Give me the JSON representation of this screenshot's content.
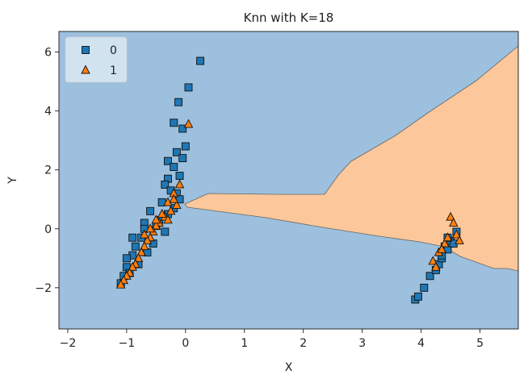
{
  "chart_data": {
    "type": "scatter",
    "title": "Knn with K=18",
    "xlabel": "X",
    "ylabel": "Y",
    "xlim": [
      -2.15,
      5.65
    ],
    "ylim": [
      -3.4,
      6.7
    ],
    "xticks": [
      -2,
      -1,
      0,
      1,
      2,
      3,
      4,
      5
    ],
    "yticks": [
      -2,
      0,
      2,
      4,
      6
    ],
    "grid": false,
    "legend_position": "top-left",
    "region_colors": {
      "class0": "#9cc0dd",
      "class1": "#fcc79a",
      "boundary": "#666666"
    },
    "series": [
      {
        "name": "0",
        "marker": "square",
        "color": "#1f77b4",
        "x": [
          0.25,
          0.05,
          -0.12,
          -0.2,
          -0.05,
          0.0,
          -0.15,
          -0.3,
          -0.2,
          -0.05,
          -0.1,
          -0.3,
          -0.35,
          -0.25,
          -0.15,
          -0.4,
          -0.1,
          -0.2,
          -0.3,
          -0.45,
          -0.5,
          -0.35,
          -0.6,
          -0.7,
          -0.75,
          -0.55,
          -0.65,
          -0.85,
          -0.9,
          -0.8,
          -1.0,
          -1.05,
          -0.95,
          -1.1,
          -0.7,
          -0.9,
          -1.0,
          3.9,
          3.95,
          4.05,
          4.15,
          4.25,
          4.3,
          4.35,
          4.4,
          4.45,
          4.5,
          4.55,
          4.6,
          4.35,
          4.45
        ],
        "y": [
          5.7,
          4.8,
          4.3,
          3.6,
          3.4,
          2.8,
          2.6,
          2.3,
          2.1,
          2.4,
          1.8,
          1.7,
          1.5,
          1.3,
          1.2,
          0.9,
          1.0,
          0.7,
          0.5,
          0.3,
          0.1,
          -0.1,
          0.6,
          0.2,
          -0.3,
          -0.5,
          -0.8,
          -0.6,
          -0.9,
          -1.2,
          -1.3,
          -1.6,
          -1.5,
          -1.85,
          0.0,
          -0.3,
          -1.0,
          -2.4,
          -2.3,
          -2.0,
          -1.6,
          -1.4,
          -1.2,
          -1.0,
          -0.6,
          -0.7,
          -0.4,
          -0.5,
          -0.1,
          -0.9,
          -0.3
        ]
      },
      {
        "name": "1",
        "marker": "triangle",
        "color": "#ff7f0e",
        "x": [
          0.05,
          -0.1,
          -0.2,
          -0.3,
          -0.15,
          -0.25,
          -0.35,
          -0.45,
          -0.5,
          -0.55,
          -0.6,
          -0.65,
          -0.7,
          -0.75,
          -0.8,
          -0.85,
          -0.9,
          -0.95,
          -1.0,
          -1.05,
          -1.1,
          -0.4,
          -0.3,
          -0.2,
          -0.6,
          -0.7,
          -0.5,
          4.2,
          4.3,
          4.4,
          4.5,
          4.55,
          4.6,
          4.65,
          4.35,
          4.45,
          4.25
        ],
        "y": [
          3.55,
          1.5,
          1.2,
          0.9,
          0.8,
          0.6,
          0.4,
          0.2,
          0.1,
          -0.1,
          -0.3,
          -0.4,
          -0.6,
          -0.8,
          -1.0,
          -1.2,
          -1.3,
          -1.5,
          -1.6,
          -1.75,
          -1.9,
          0.5,
          0.3,
          1.0,
          0.0,
          -0.2,
          0.3,
          -1.1,
          -0.8,
          -0.5,
          0.4,
          0.2,
          -0.2,
          -0.4,
          -0.7,
          -0.3,
          -1.3
        ]
      }
    ]
  }
}
